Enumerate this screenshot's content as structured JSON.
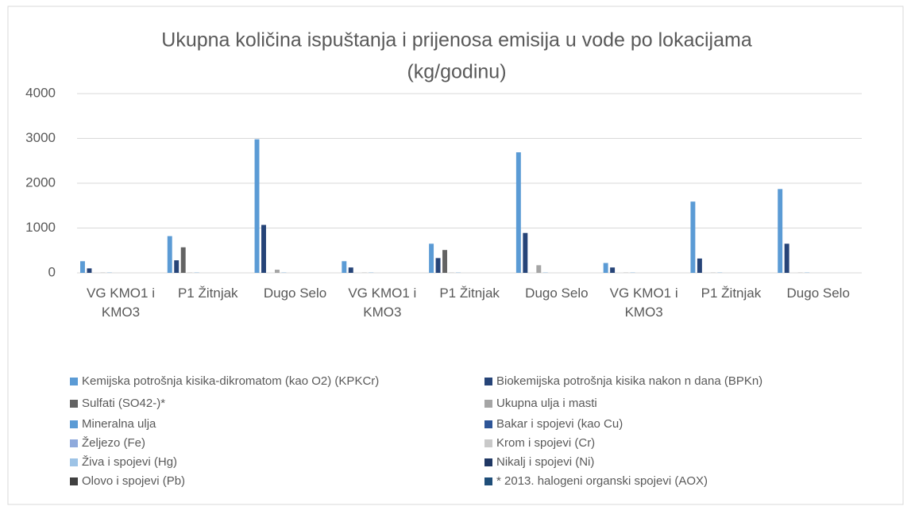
{
  "chart_data": {
    "type": "bar",
    "title": [
      "Ukupna količina ispuštanja i prijenosa emisija u vode po lokacijama",
      "(kg/godinu)"
    ],
    "categories": [
      "VG KMO1 i KMO3",
      "P1 Žitnjak",
      "Dugo Selo",
      "VG KMO1 i KMO3",
      "P1 Žitnjak",
      "Dugo Selo",
      "VG KMO1 i KMO3",
      "P1 Žitnjak",
      "Dugo Selo"
    ],
    "series": [
      {
        "name": "Kemijska potrošnja kisika-dikromatom (kao O2) (KPKCr)",
        "color": "#5b9bd5",
        "values": [
          260,
          820,
          2980,
          260,
          650,
          2690,
          220,
          1590,
          1870
        ]
      },
      {
        "name": "Biokemijska potrošnja kisika nakon n dana (BPKn)",
        "color": "#264478",
        "values": [
          100,
          280,
          1070,
          120,
          330,
          890,
          120,
          320,
          650
        ]
      },
      {
        "name": "Sulfati (SO42-)*",
        "color": "#636363",
        "values": [
          0,
          570,
          0,
          0,
          510,
          0,
          0,
          0,
          0
        ]
      },
      {
        "name": "Ukupna ulja i masti",
        "color": "#a5a5a5",
        "values": [
          5,
          5,
          70,
          5,
          5,
          170,
          5,
          5,
          5
        ]
      },
      {
        "name": "Mineralna ulja",
        "color": "#5b9bd5",
        "values": [
          5,
          5,
          5,
          5,
          5,
          5,
          5,
          5,
          5
        ]
      },
      {
        "name": "Bakar i spojevi (kao Cu)",
        "color": "#2e5597",
        "values": [
          0,
          0,
          0,
          0,
          0,
          0,
          0,
          0,
          0
        ]
      },
      {
        "name": "Željezo (Fe)",
        "color": "#8faadc",
        "values": [
          0,
          0,
          0,
          0,
          0,
          0,
          0,
          0,
          0
        ]
      },
      {
        "name": "Krom i spojevi (Cr)",
        "color": "#c9c9c9",
        "values": [
          0,
          0,
          0,
          0,
          0,
          0,
          0,
          0,
          0
        ]
      },
      {
        "name": "Živa i spojevi (Hg)",
        "color": "#9dc3e6",
        "values": [
          0,
          0,
          0,
          0,
          0,
          0,
          0,
          0,
          0
        ]
      },
      {
        "name": "Nikalj i spojevi (Ni)",
        "color": "#203864",
        "values": [
          0,
          0,
          0,
          0,
          0,
          0,
          0,
          0,
          0
        ]
      },
      {
        "name": "Olovo i spojevi (Pb)",
        "color": "#404040",
        "values": [
          0,
          0,
          0,
          0,
          0,
          0,
          0,
          0,
          0
        ]
      },
      {
        "name": "* 2013. halogeni organski spojevi (AOX)",
        "color": "#1f4e79",
        "values": [
          0,
          0,
          0,
          0,
          0,
          0,
          0,
          0,
          0
        ]
      }
    ],
    "ylim": [
      0,
      4000
    ],
    "yticks": [
      0,
      1000,
      2000,
      3000,
      4000
    ],
    "grid": true,
    "legend": "bottom"
  }
}
